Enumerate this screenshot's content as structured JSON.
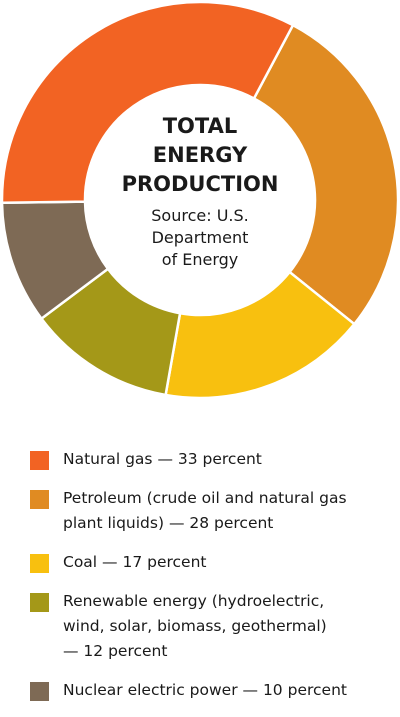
{
  "chart_data": {
    "type": "pie",
    "title_lines": [
      "TOTAL",
      "ENERGY",
      "PRODUCTION"
    ],
    "source_lines": [
      "Source: U.S.",
      "Department",
      "of Energy"
    ],
    "categories": [
      "Natural gas",
      "Petroleum (crude oil and natural gas plant liquids)",
      "Coal",
      "Renewable energy (hydroelectric, wind, solar, biomass, geothermal)",
      "Nuclear electric power"
    ],
    "values": [
      33,
      28,
      17,
      12,
      10
    ],
    "colors": [
      "#f26323",
      "#e08b22",
      "#f8c00f",
      "#a49818",
      "#7e6a55"
    ],
    "legend_position": "bottom"
  },
  "legend": [
    {
      "lines": [
        "Natural gas — 33 percent"
      ],
      "color": "#f26323"
    },
    {
      "lines": [
        "Petroleum (crude oil and natural gas",
        "plant liquids) — 28 percent"
      ],
      "color": "#e08b22"
    },
    {
      "lines": [
        "Coal — 17 percent"
      ],
      "color": "#f8c00f"
    },
    {
      "lines": [
        "Renewable energy (hydroelectric,",
        "wind, solar, biomass, geothermal)",
        "— 12 percent"
      ],
      "color": "#a49818"
    },
    {
      "lines": [
        "Nuclear electric power — 10 percent"
      ],
      "color": "#7e6a55"
    }
  ]
}
